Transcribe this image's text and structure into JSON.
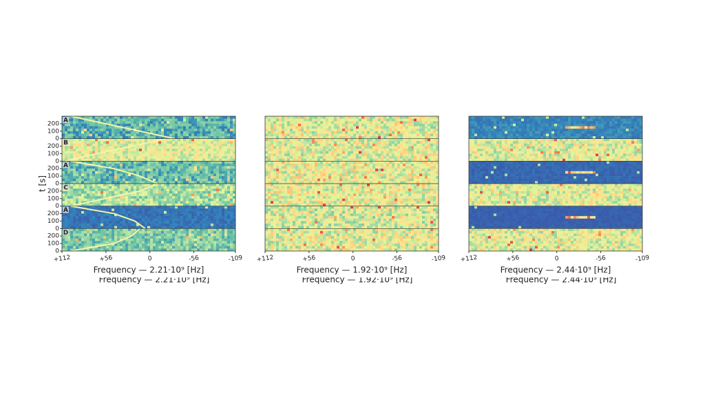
{
  "chart_data": [
    {
      "type": "heatmap",
      "xlabel": "Frequency — 2.21·10⁹ [Hz]",
      "ylabel": "t [s]",
      "xlim": [
        112,
        -109
      ],
      "xticks": [
        {
          "value": 112,
          "label": "+112"
        },
        {
          "value": 56,
          "label": "+56"
        },
        0,
        -56,
        -109
      ],
      "ylim": [
        0,
        300
      ],
      "yticks": [
        0,
        100,
        200
      ],
      "strip_labels": [
        "A",
        "B",
        "A",
        "C",
        "A",
        "D"
      ]
    },
    {
      "type": "heatmap",
      "xlabel": "Frequency — 1.92·10⁹ [Hz]",
      "xlim": [
        112,
        -109
      ],
      "xticks": [
        {
          "value": 112,
          "label": "+112"
        },
        {
          "value": 56,
          "label": "+56"
        },
        0,
        -56,
        -109
      ]
    },
    {
      "type": "heatmap",
      "xlabel": "Frequency — 2.44·10⁹ [Hz]",
      "xlim": [
        112,
        -109
      ],
      "xticks": [
        {
          "value": 112,
          "label": "+112"
        },
        {
          "value": 56,
          "label": "+56"
        },
        0,
        -56,
        -109
      ]
    }
  ]
}
